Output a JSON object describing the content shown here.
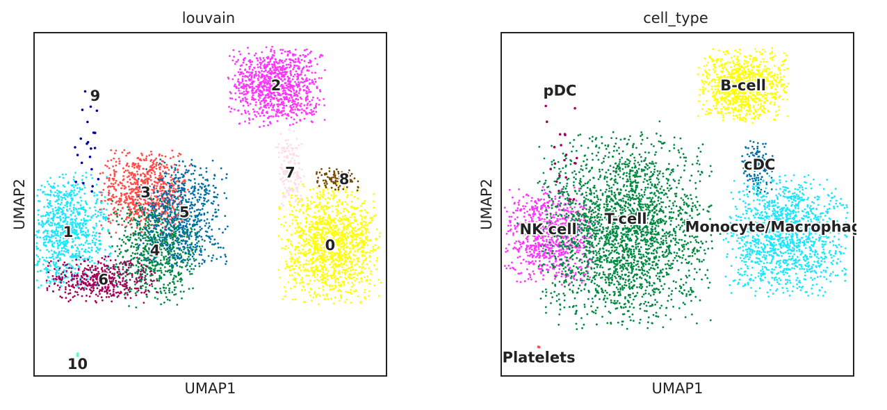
{
  "chart_data": [
    {
      "type": "scatter",
      "title": "louvain",
      "xlabel": "UMAP1",
      "ylabel": "UMAP2",
      "grid": false,
      "legend": "on data",
      "clusters": [
        {
          "label": "0",
          "color": "#ffff00",
          "x": 12.6,
          "y": 5.0,
          "sx": 1.0,
          "sy": 1.05,
          "n": 1300,
          "label_x": 12.6,
          "label_y": 4.95
        },
        {
          "label": "1",
          "color": "#1ce6ff",
          "x": 1.4,
          "y": 5.5,
          "sx": 0.85,
          "sy": 1.0,
          "n": 900,
          "label_x": 1.45,
          "label_y": 5.45
        },
        {
          "label": "2",
          "color": "#ff34ff",
          "x": 10.3,
          "y": 11.0,
          "sx": 0.95,
          "sy": 0.7,
          "n": 1000,
          "label_x": 10.3,
          "label_y": 11.0
        },
        {
          "label": "3",
          "color": "#ff4a46",
          "x": 4.7,
          "y": 6.95,
          "sx": 0.9,
          "sy": 0.75,
          "n": 750,
          "label_x": 4.75,
          "label_y": 6.95
        },
        {
          "label": "4",
          "color": "#008941",
          "x": 5.1,
          "y": 4.65,
          "sx": 0.9,
          "sy": 0.95,
          "n": 700,
          "label_x": 5.15,
          "label_y": 4.75
        },
        {
          "label": "5",
          "color": "#006fa6",
          "x": 6.3,
          "y": 6.1,
          "sx": 0.9,
          "sy": 1.0,
          "n": 700,
          "label_x": 6.4,
          "label_y": 6.2
        },
        {
          "label": "6",
          "color": "#a30059",
          "x": 2.9,
          "y": 3.65,
          "sx": 1.1,
          "sy": 0.4,
          "n": 450,
          "label_x": 2.95,
          "label_y": 3.65
        },
        {
          "label": "7",
          "color": "#ffdbe5",
          "x": 10.9,
          "y": 7.8,
          "sx": 0.28,
          "sy": 0.7,
          "n": 140,
          "label_x": 10.9,
          "label_y": 7.7
        },
        {
          "label": "8",
          "color": "#7a4900",
          "x": 12.9,
          "y": 7.45,
          "sx": 0.45,
          "sy": 0.22,
          "n": 90,
          "label_x": 13.2,
          "label_y": 7.45
        },
        {
          "label": "9",
          "color": "#0000a6",
          "x": 2.2,
          "y": 8.5,
          "sx": 0.35,
          "sy": 1.1,
          "n": 22,
          "label_x": 2.6,
          "label_y": 10.6
        },
        {
          "label": "10",
          "color": "#63ffac",
          "x": 1.85,
          "y": 0.8,
          "sx": 0.04,
          "sy": 0.04,
          "n": 3,
          "label_x": 1.85,
          "label_y": 0.45
        }
      ],
      "xlim": [
        0,
        15
      ],
      "ylim": [
        0,
        13
      ]
    },
    {
      "type": "scatter",
      "title": "cell_type",
      "xlabel": "UMAP1",
      "ylabel": "UMAP2",
      "grid": false,
      "legend": "on data",
      "clusters": [
        {
          "label": "B-cell",
          "color": "#ffff00",
          "x": 10.3,
          "y": 11.0,
          "sx": 0.9,
          "sy": 0.65,
          "n": 900,
          "label_x": 10.3,
          "label_y": 11.0
        },
        {
          "label": "cDC",
          "color": "#006fa6",
          "x": 10.9,
          "y": 7.9,
          "sx": 0.3,
          "sy": 0.55,
          "n": 140,
          "label_x": 11.0,
          "label_y": 8.0
        },
        {
          "label": "Monocyte/Macrophage",
          "color": "#1ce6ff",
          "x": 12.1,
          "y": 5.3,
          "sx": 1.2,
          "sy": 1.05,
          "n": 1300,
          "label_x": 11.8,
          "label_y": 5.65
        },
        {
          "label": "NK cell",
          "color": "#ff34ff",
          "x": 2.0,
          "y": 5.3,
          "sx": 0.95,
          "sy": 0.85,
          "n": 800,
          "label_x": 2.0,
          "label_y": 5.55
        },
        {
          "label": "Platelets",
          "color": "#ff4a46",
          "x": 1.6,
          "y": 1.1,
          "sx": 0.03,
          "sy": 0.03,
          "n": 2,
          "label_x": 1.6,
          "label_y": 0.7
        },
        {
          "label": "T-cell",
          "color": "#008941",
          "x": 5.3,
          "y": 5.5,
          "sx": 1.7,
          "sy": 1.7,
          "n": 2400,
          "label_x": 5.3,
          "label_y": 5.95
        },
        {
          "label": "pDC",
          "color": "#a30059",
          "x": 2.5,
          "y": 8.5,
          "sx": 0.4,
          "sy": 1.2,
          "n": 22,
          "label_x": 2.5,
          "label_y": 10.8
        }
      ],
      "xlim": [
        0,
        15
      ],
      "ylim": [
        0,
        13
      ]
    }
  ]
}
